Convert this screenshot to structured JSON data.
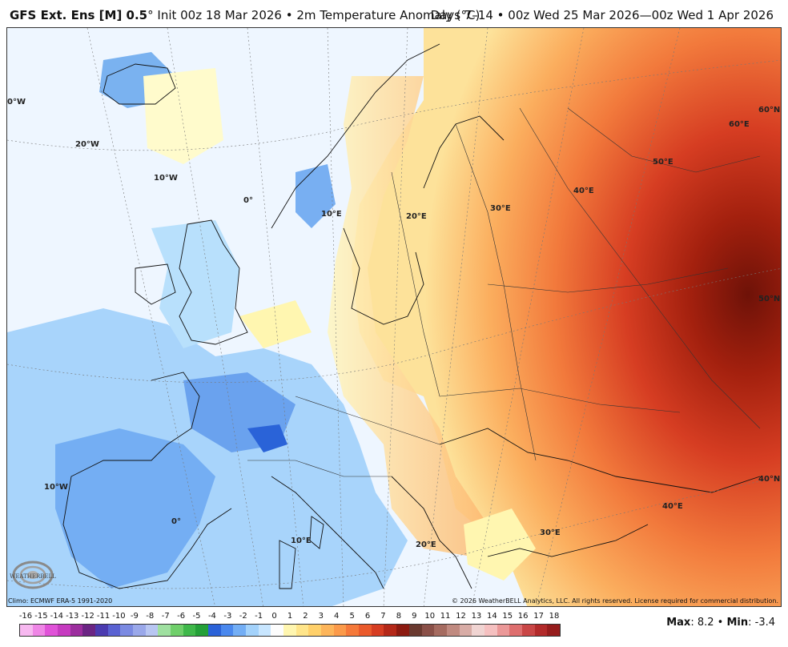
{
  "header": {
    "model": "GFS Ext.  Ens [M] 0.5",
    "degree_mark": "°",
    "init": "Init 00z 18 Mar 2026",
    "separator": "•",
    "variable": "2m Temperature Anomaly (°C)",
    "valid": "Days 7–14 • 00z Wed 25 Mar 2026—00z Wed 1 Apr 2026"
  },
  "grid_labels": {
    "lon_0w_top": "0°W",
    "lon_20w": "20°W",
    "lon_10w_top": "10°W",
    "lon_0": "0°",
    "lon_10e_north": "10°E",
    "lon_20e_north": "20°E",
    "lon_30e_north": "30°E",
    "lon_40e_north": "40°E",
    "lon_50e": "50°E",
    "lon_60e": "60°E",
    "lat_60n": "60°N",
    "lat_50n": "50°N",
    "lat_40n": "40°N",
    "lon_10w_south": "10°W",
    "lon_0_south": "0°",
    "lon_10e_south": "10°E",
    "lon_20e_south": "20°E",
    "lon_30e_south": "30°E",
    "lon_40e_south": "40°E"
  },
  "footer": {
    "climo": "Climo: ECMWF ERA-5 1991-2020",
    "copyright": "© 2026 WeatherBELL Analytics, LLC. All rights reserved. License required for commercial distribution."
  },
  "logo": {
    "text": "WEATHERBELL",
    "icon": "swirl-logo-icon"
  },
  "legend": {
    "ticks": [
      "-16",
      "-15",
      "-14",
      "-13",
      "-12",
      "-11",
      "-10",
      "-9",
      "-8",
      "-7",
      "-6",
      "-5",
      "-4",
      "-3",
      "-2",
      "-1",
      "0",
      "1",
      "2",
      "3",
      "4",
      "5",
      "6",
      "7",
      "8",
      "9",
      "10",
      "11",
      "12",
      "13",
      "14",
      "15",
      "16",
      "17",
      "18"
    ],
    "colors": [
      "#f7b8f0",
      "#ef86e6",
      "#e052d8",
      "#c63bc0",
      "#9c2e9e",
      "#6b2584",
      "#4b3bb0",
      "#5a62d2",
      "#7b8ae2",
      "#9aa8ea",
      "#b8c6f2",
      "#9fe0a0",
      "#6fcf6a",
      "#3fb84a",
      "#24a038",
      "#2b62d8",
      "#4a88ee",
      "#73aef5",
      "#a3d2fb",
      "#c8e6ff",
      "#fdfdfd",
      "#fff6b0",
      "#ffe58a",
      "#ffd06a",
      "#fdb55a",
      "#fb9a4a",
      "#f5793a",
      "#ea5a2c",
      "#d63d22",
      "#b42818",
      "#8c1a10",
      "#6a3a30",
      "#8a5048",
      "#a56b60",
      "#c08a80",
      "#d8aca6",
      "#f0d4d2",
      "#f5c0c0",
      "#eb9898",
      "#de6e6e",
      "#c94646",
      "#b22a2a",
      "#961c1c"
    ],
    "colors_note_unused": ""
  },
  "maxmin": {
    "max_label": "Max",
    "max_value": ": 8.2",
    "bullet": " • ",
    "min_label": "Min",
    "min_value": ": -3.4"
  }
}
